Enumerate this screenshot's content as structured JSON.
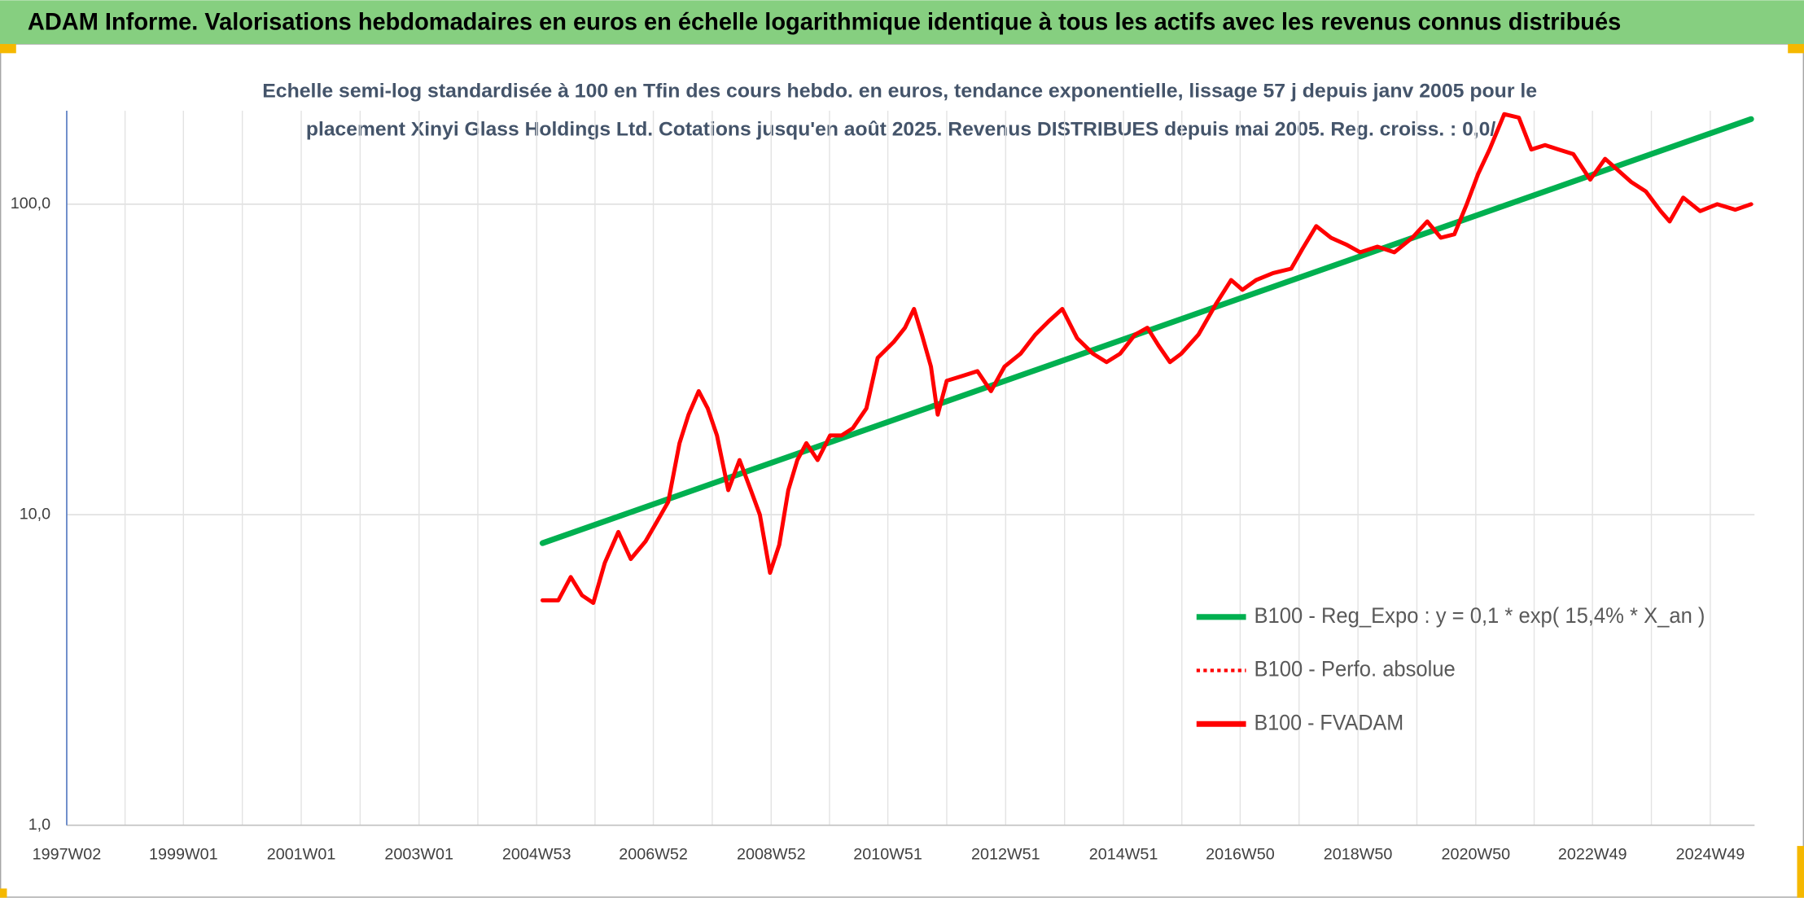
{
  "chart_data": {
    "type": "line",
    "title": "ADAM Informe. Valorisations hebdomadaires en euros en échelle logarithmique identique à tous les actifs avec les revenus connus distribués",
    "subtitle": [
      "Echelle semi-log standardisée à 100 en Tfin des cours hebdo. en euros, tendance exponentielle, lissage 57 j depuis janv 2005 pour le",
      "placement Xinyi Glass Holdings Ltd. Cotations jusqu'en août 2025. Revenus DISTRIBUES depuis mai 2005. Reg. croiss. : 0,0/"
    ],
    "log_scale_y": true,
    "grid": true,
    "legend_position": "lower right",
    "xlim": [
      "1997W02",
      "2025W36"
    ],
    "xticks": [
      "1997W02",
      "1999W01",
      "2001W01",
      "2003W01",
      "2004W53",
      "2006W52",
      "2008W52",
      "2010W51",
      "2012W51",
      "2014W51",
      "2016W50",
      "2018W50",
      "2020W50",
      "2022W49",
      "2024W49"
    ],
    "ylim": [
      1,
      200
    ],
    "yticks": [
      {
        "value": 1,
        "label": "1,0"
      },
      {
        "value": 10,
        "label": "10,0"
      },
      {
        "value": 100,
        "label": "100,0"
      }
    ],
    "series": [
      {
        "name": "B100 - Reg_Expo : y = 0,1 * exp( 15,4% *  X_an )",
        "color": "#00b050",
        "style": "solid",
        "x": [
          "2005W06",
          "2025W33"
        ],
        "values": [
          8.1,
          188
        ]
      },
      {
        "name": "B100 - Perfo. absolue",
        "color": "#ff0000",
        "style": "dotted",
        "x": [],
        "values": []
      },
      {
        "name": "B100 - FVADAM",
        "color": "#ff0000",
        "style": "solid",
        "x": [
          "2005W06",
          "2005W20",
          "2005W31",
          "2005W41",
          "2005W51",
          "2006W09",
          "2006W21",
          "2006W32",
          "2006W45",
          "2007W03",
          "2007W13",
          "2007W23",
          "2007W31",
          "2007W40",
          "2007W48",
          "2008W04",
          "2008W14",
          "2008W24",
          "2008W34",
          "2008W42",
          "2008W51",
          "2009W07",
          "2009W15",
          "2009W23",
          "2009W31",
          "2009W41",
          "2009W52",
          "2010W10",
          "2010W20",
          "2010W32",
          "2010W42",
          "2011W04",
          "2011W14",
          "2011W22",
          "2011W29",
          "2011W37",
          "2011W43",
          "2011W51",
          "2012W13",
          "2012W26",
          "2012W38",
          "2012W50",
          "2013W12",
          "2013W25",
          "2013W37",
          "2013W49",
          "2014W10",
          "2014W24",
          "2014W36",
          "2014W48",
          "2015W09",
          "2015W20",
          "2015W30",
          "2015W40",
          "2015W50",
          "2016W13",
          "2016W29",
          "2016W42",
          "2016W52",
          "2017W12",
          "2017W27",
          "2017W43",
          "2018W01",
          "2018W13",
          "2018W26",
          "2018W40",
          "2018W52",
          "2019W15",
          "2019W30",
          "2019W46",
          "2020W07",
          "2020W19",
          "2020W31",
          "2020W42",
          "2020W52",
          "2021W10",
          "2021W23",
          "2021W36",
          "2021W47",
          "2022W07",
          "2022W19",
          "2022W32",
          "2022W47",
          "2023W08",
          "2023W18",
          "2023W31",
          "2023W44",
          "2024W05",
          "2024W13",
          "2024W25",
          "2024W40",
          "2025W03",
          "2025W19",
          "2025W33"
        ],
        "values": [
          5.3,
          5.3,
          6.3,
          5.5,
          5.2,
          7.0,
          8.8,
          7.2,
          8.2,
          9.5,
          11,
          17,
          21,
          25,
          22,
          18,
          12,
          15,
          12,
          10,
          6.5,
          8,
          12,
          15,
          17,
          15,
          18,
          18,
          19,
          22,
          32,
          36,
          40,
          46,
          38,
          30,
          21,
          27,
          28,
          29,
          25,
          30,
          33,
          38,
          42,
          46,
          37,
          33,
          31,
          33,
          38,
          40,
          35,
          31,
          33,
          38,
          48,
          57,
          53,
          57,
          60,
          62,
          72,
          85,
          78,
          74,
          70,
          73,
          70,
          78,
          88,
          78,
          80,
          100,
          125,
          150,
          195,
          190,
          150,
          155,
          150,
          145,
          120,
          140,
          130,
          118,
          110,
          95,
          88,
          105,
          95,
          100,
          96,
          100
        ]
      }
    ]
  }
}
